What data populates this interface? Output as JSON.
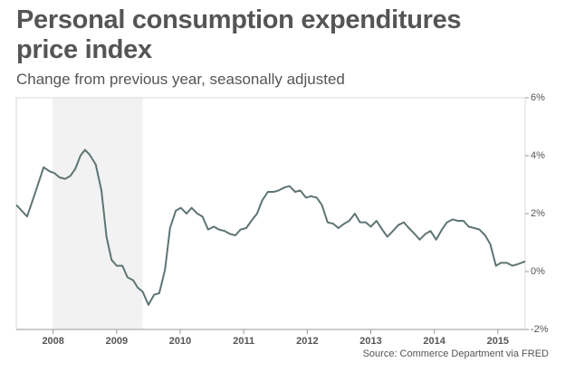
{
  "chart_data": {
    "type": "line",
    "title": "Personal consumption expenditures price index",
    "subtitle": "Change from previous year, seasonally adjusted",
    "source": "Source: Commerce Department via FRED",
    "x": [
      2007.42,
      2007.59,
      2007.73,
      2007.85,
      2007.95,
      2008.02,
      2008.1,
      2008.19,
      2008.27,
      2008.35,
      2008.43,
      2008.5,
      2008.57,
      2008.67,
      2008.76,
      2008.84,
      2008.92,
      2009.0,
      2009.09,
      2009.17,
      2009.26,
      2009.33,
      2009.41,
      2009.5,
      2009.59,
      2009.67,
      2009.76,
      2009.84,
      2009.93,
      2010.01,
      2010.1,
      2010.18,
      2010.27,
      2010.35,
      2010.44,
      2010.53,
      2010.61,
      2010.7,
      2010.78,
      2010.87,
      2010.95,
      2011.04,
      2011.12,
      2011.21,
      2011.29,
      2011.38,
      2011.47,
      2011.55,
      2011.64,
      2011.72,
      2011.81,
      2011.89,
      2011.98,
      2012.06,
      2012.15,
      2012.23,
      2012.32,
      2012.41,
      2012.49,
      2012.58,
      2012.66,
      2012.75,
      2012.83,
      2012.92,
      2013.0,
      2013.09,
      2013.18,
      2013.26,
      2013.35,
      2013.43,
      2013.52,
      2013.6,
      2013.69,
      2013.77,
      2013.86,
      2013.94,
      2014.03,
      2014.12,
      2014.2,
      2014.29,
      2014.37,
      2014.46,
      2014.54,
      2014.63,
      2014.71,
      2014.8,
      2014.88,
      2014.97,
      2015.05,
      2015.14,
      2015.23,
      2015.31,
      2015.43
    ],
    "series": [
      {
        "color": "#5f7474",
        "values": [
          2.3,
          1.9,
          2.8,
          3.6,
          3.45,
          3.4,
          3.25,
          3.2,
          3.3,
          3.55,
          4.0,
          4.2,
          4.05,
          3.7,
          2.8,
          1.2,
          0.4,
          0.2,
          0.2,
          -0.2,
          -0.3,
          -0.55,
          -0.7,
          -1.15,
          -0.8,
          -0.75,
          0.05,
          1.5,
          2.1,
          2.2,
          2.0,
          2.2,
          2.0,
          1.9,
          1.45,
          1.55,
          1.45,
          1.4,
          1.3,
          1.25,
          1.45,
          1.5,
          1.75,
          2.0,
          2.45,
          2.75,
          2.75,
          2.8,
          2.9,
          2.95,
          2.75,
          2.8,
          2.55,
          2.6,
          2.55,
          2.3,
          1.7,
          1.65,
          1.5,
          1.65,
          1.75,
          2.0,
          1.7,
          1.7,
          1.55,
          1.75,
          1.45,
          1.2,
          1.4,
          1.6,
          1.7,
          1.5,
          1.3,
          1.1,
          1.3,
          1.4,
          1.1,
          1.45,
          1.7,
          1.8,
          1.75,
          1.75,
          1.55,
          1.5,
          1.45,
          1.25,
          0.95,
          0.2,
          0.3,
          0.3,
          0.2,
          0.25,
          0.35
        ]
      }
    ],
    "shaded_x": [
      2007.99,
      2009.41
    ],
    "xlim": [
      2007.42,
      2015.43
    ],
    "xticks": [
      2008,
      2009,
      2010,
      2011,
      2012,
      2013,
      2014,
      2015
    ],
    "ylim": [
      -2,
      6
    ],
    "yticks": [
      {
        "value": -2,
        "label": "-2%"
      },
      {
        "value": 0,
        "label": "0%"
      },
      {
        "value": 2,
        "label": "2%"
      },
      {
        "value": 4,
        "label": "4%"
      },
      {
        "value": 6,
        "label": "6%"
      }
    ]
  }
}
